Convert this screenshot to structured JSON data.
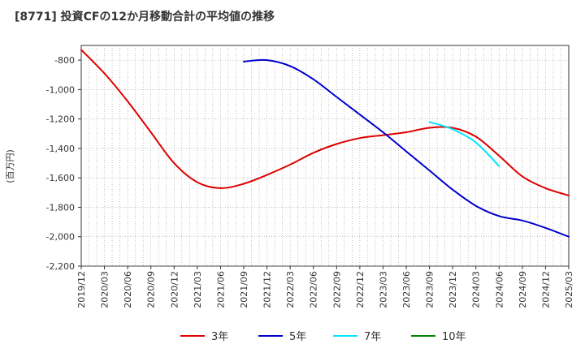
{
  "chart_data": {
    "type": "line",
    "title": "[8771]  投資CFの12か月移動合計の平均値の推移",
    "ylabel": "(百万円)",
    "xlabel": "",
    "ylim": [
      -2200,
      -700
    ],
    "yticks": [
      -800,
      -1000,
      -1200,
      -1400,
      -1600,
      -1800,
      -2000,
      -2200
    ],
    "ytick_labels": [
      "-800",
      "-1,000",
      "-1,200",
      "-1,400",
      "-1,600",
      "-1,800",
      "-2,000",
      "-2,200"
    ],
    "x_range": [
      "2019-12",
      "2025-03"
    ],
    "xtick_labels": [
      "2019/12",
      "2020/03",
      "2020/06",
      "2020/09",
      "2020/12",
      "2021/03",
      "2021/06",
      "2021/09",
      "2021/12",
      "2022/03",
      "2022/06",
      "2022/09",
      "2022/12",
      "2023/03",
      "2023/06",
      "2023/09",
      "2023/12",
      "2024/03",
      "2024/06",
      "2024/09",
      "2024/12",
      "2025/03"
    ],
    "grid": true,
    "legend_position": "bottom",
    "series": [
      {
        "name": "3年",
        "color": "#dd0000",
        "points": [
          [
            "2019-12",
            -730
          ],
          [
            "2020-03",
            -890
          ],
          [
            "2020-06",
            -1080
          ],
          [
            "2020-09",
            -1290
          ],
          [
            "2020-12",
            -1500
          ],
          [
            "2021-03",
            -1630
          ],
          [
            "2021-06",
            -1670
          ],
          [
            "2021-09",
            -1640
          ],
          [
            "2021-12",
            -1580
          ],
          [
            "2022-03",
            -1510
          ],
          [
            "2022-06",
            -1430
          ],
          [
            "2022-09",
            -1370
          ],
          [
            "2022-12",
            -1330
          ],
          [
            "2023-03",
            -1310
          ],
          [
            "2023-06",
            -1290
          ],
          [
            "2023-09",
            -1260
          ],
          [
            "2023-12",
            -1260
          ],
          [
            "2024-03",
            -1320
          ],
          [
            "2024-06",
            -1450
          ],
          [
            "2024-09",
            -1590
          ],
          [
            "2024-12",
            -1670
          ],
          [
            "2025-03",
            -1720
          ]
        ]
      },
      {
        "name": "5年",
        "color": "#0000cc",
        "points": [
          [
            "2021-09",
            -810
          ],
          [
            "2021-12",
            -800
          ],
          [
            "2022-03",
            -840
          ],
          [
            "2022-06",
            -930
          ],
          [
            "2022-09",
            -1050
          ],
          [
            "2022-12",
            -1170
          ],
          [
            "2023-03",
            -1290
          ],
          [
            "2023-06",
            -1420
          ],
          [
            "2023-09",
            -1550
          ],
          [
            "2023-12",
            -1680
          ],
          [
            "2024-03",
            -1790
          ],
          [
            "2024-06",
            -1860
          ],
          [
            "2024-09",
            -1890
          ],
          [
            "2024-12",
            -1940
          ],
          [
            "2025-03",
            -2000
          ]
        ]
      },
      {
        "name": "7年",
        "color": "#00e5ff",
        "points": [
          [
            "2023-09",
            -1220
          ],
          [
            "2023-12",
            -1270
          ],
          [
            "2024-03",
            -1360
          ],
          [
            "2024-06",
            -1520
          ]
        ]
      },
      {
        "name": "10年",
        "color": "#008800",
        "points": []
      }
    ]
  }
}
